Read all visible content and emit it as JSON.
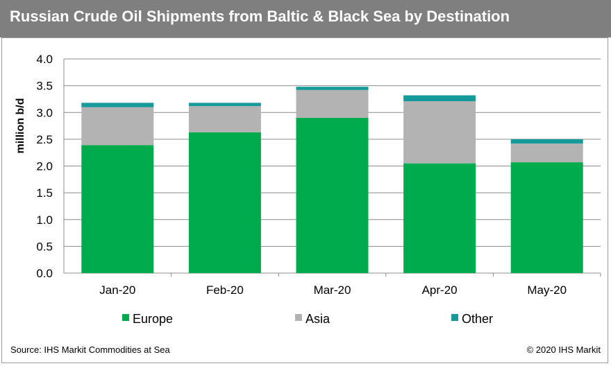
{
  "title": "Russian Crude Oil Shipments from Baltic & Black Sea by Destination",
  "source": "Source: IHS Markit Commodities at Sea",
  "copyright": "© 2020 IHS Markit",
  "colors": {
    "Europe": "#00ab4e",
    "Asia": "#b3b3b3",
    "Other": "#149a9a"
  },
  "chart_data": {
    "type": "bar",
    "stacked": true,
    "categories": [
      "Jan-20",
      "Feb-20",
      "Mar-20",
      "Apr-20",
      "May-20"
    ],
    "series": [
      {
        "name": "Europe",
        "values": [
          2.39,
          2.63,
          2.9,
          2.05,
          2.07
        ]
      },
      {
        "name": "Asia",
        "values": [
          0.71,
          0.49,
          0.52,
          1.16,
          0.35
        ]
      },
      {
        "name": "Other",
        "values": [
          0.08,
          0.06,
          0.06,
          0.11,
          0.08
        ]
      }
    ],
    "ylabel": "million b/d",
    "ylim": [
      0,
      4.0
    ],
    "yticks": [
      "0.0",
      "0.5",
      "1.0",
      "1.5",
      "2.0",
      "2.5",
      "3.0",
      "3.5",
      "4.0"
    ],
    "grid": true,
    "legend": "bottom"
  }
}
